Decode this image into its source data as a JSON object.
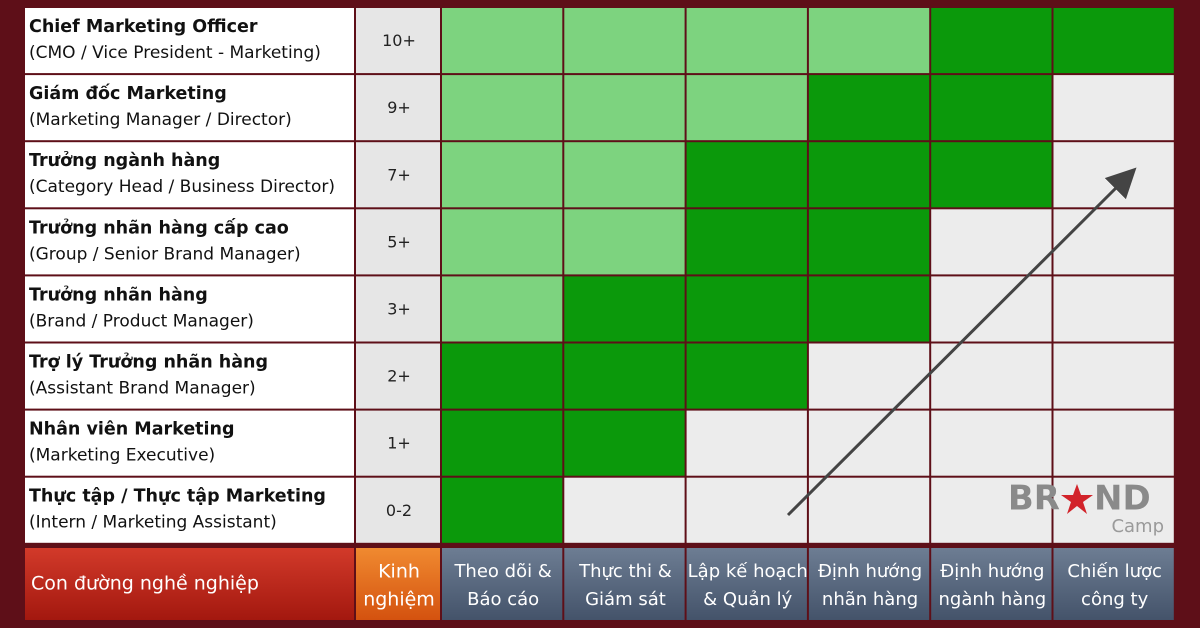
{
  "rows": [
    {
      "title": "Chief Marketing Officer",
      "subtitle": "(CMO / Vice President - Marketing)",
      "experience": "10+",
      "cells": [
        "#7dd37f",
        "#7dd37f",
        "#7dd37f",
        "#7dd37f",
        "#0b990b",
        "#0b990b"
      ]
    },
    {
      "title": "Giám đốc Marketing",
      "subtitle": "(Marketing Manager / Director)",
      "experience": "9+",
      "cells": [
        "#7dd37f",
        "#7dd37f",
        "#7dd37f",
        "#0b990b",
        "#0b990b",
        "#ececec"
      ]
    },
    {
      "title": "Trưởng ngành hàng",
      "subtitle": "(Category Head / Business Director)",
      "experience": "7+",
      "cells": [
        "#7dd37f",
        "#7dd37f",
        "#0b990b",
        "#0b990b",
        "#0b990b",
        "#ececec"
      ]
    },
    {
      "title": "Trưởng nhãn hàng cấp cao",
      "subtitle": "(Group / Senior Brand Manager)",
      "experience": "5+",
      "cells": [
        "#7dd37f",
        "#7dd37f",
        "#0b990b",
        "#0b990b",
        "#ececec",
        "#ececec"
      ]
    },
    {
      "title": "Trưởng nhãn hàng",
      "subtitle": "(Brand / Product Manager)",
      "experience": "3+",
      "cells": [
        "#7dd37f",
        "#0b990b",
        "#0b990b",
        "#0b990b",
        "#ececec",
        "#ececec"
      ]
    },
    {
      "title": "Trợ lý Trưởng nhãn hàng",
      "subtitle": "(Assistant Brand Manager)",
      "experience": "2+",
      "cells": [
        "#0b990b",
        "#0b990b",
        "#0b990b",
        "#ececec",
        "#ececec",
        "#ececec"
      ]
    },
    {
      "title": "Nhân viên Marketing",
      "subtitle": "(Marketing Executive)",
      "experience": "1+",
      "cells": [
        "#0b990b",
        "#0b990b",
        "#ececec",
        "#ececec",
        "#ececec",
        "#ececec"
      ]
    },
    {
      "title": "Thực tập / Thực tập Marketing",
      "subtitle": "(Intern / Marketing Assistant)",
      "experience": "0-2",
      "cells": [
        "#0b990b",
        "#ececec",
        "#ececec",
        "#ececec",
        "#ececec",
        "#ececec"
      ]
    }
  ],
  "footer": {
    "path_label": "Con đường nghề nghiệp",
    "experience_label": [
      "Kinh",
      "nghiệm"
    ],
    "columns": [
      [
        "Theo dõi &",
        "Báo cáo"
      ],
      [
        "Thực thi &",
        "Giám sát"
      ],
      [
        "Lập kế hoạch",
        "& Quản lý"
      ],
      [
        "Định hướng",
        "nhãn hàng"
      ],
      [
        "Định hướng",
        "ngành hàng"
      ],
      [
        "Chiến lược",
        "công ty"
      ]
    ]
  },
  "logo": {
    "left": "BR",
    "right": "ND",
    "sub": "Camp"
  }
}
